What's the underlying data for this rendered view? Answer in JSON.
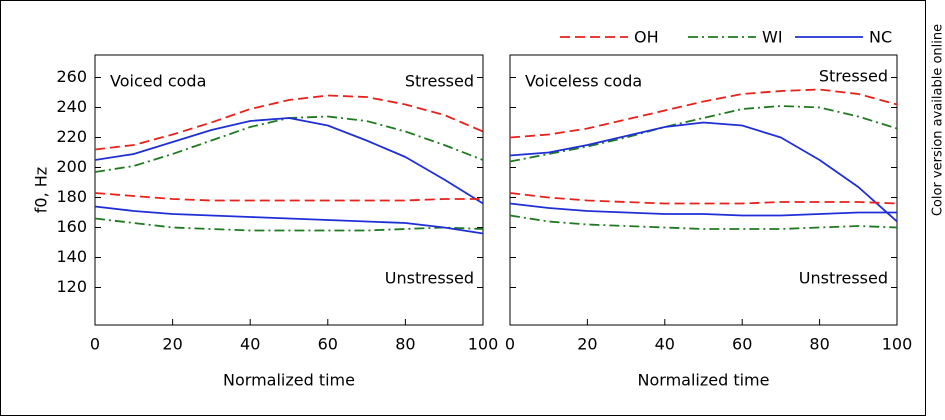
{
  "side_note": "Color version available online",
  "legend": [
    {
      "name": "OH",
      "color": "#e8211b",
      "style": "dashed"
    },
    {
      "name": "WI",
      "color": "#1f7a1f",
      "style": "dashdot"
    },
    {
      "name": "NC",
      "color": "#1f2fd6",
      "style": "solid"
    }
  ],
  "chart_data": [
    {
      "type": "line",
      "ylabel": "f0, Hz",
      "xlabel": "Normalized time",
      "annotations": [
        "Voiced coda",
        "Stressed",
        "Unstressed"
      ],
      "x": [
        0,
        10,
        20,
        30,
        40,
        50,
        60,
        70,
        80,
        90,
        100
      ],
      "xlim": [
        0,
        100
      ],
      "xticks": [
        0,
        20,
        40,
        60,
        80,
        100
      ],
      "ylim": [
        95,
        275
      ],
      "yticks": [
        120,
        140,
        160,
        180,
        200,
        220,
        240,
        260
      ],
      "series": [
        {
          "name": "OH",
          "color": "#e8211b",
          "style": "dashed",
          "values": [
            212,
            215,
            222,
            230,
            239,
            245,
            248,
            247,
            242,
            235,
            224
          ]
        },
        {
          "name": "WI",
          "color": "#1f7a1f",
          "style": "dashdot",
          "values": [
            197,
            201,
            209,
            218,
            227,
            233,
            234,
            231,
            224,
            215,
            205
          ]
        },
        {
          "name": "NC",
          "color": "#1f2fd6",
          "style": "solid",
          "values": [
            205,
            209,
            217,
            225,
            231,
            233,
            228,
            218,
            207,
            192,
            176
          ]
        },
        {
          "name": "OH",
          "color": "#e8211b",
          "style": "dashed",
          "values": [
            183,
            181,
            179,
            178,
            178,
            178,
            178,
            178,
            178,
            179,
            179
          ]
        },
        {
          "name": "WI",
          "color": "#1f7a1f",
          "style": "dashdot",
          "values": [
            166,
            163,
            160,
            159,
            158,
            158,
            158,
            158,
            159,
            160,
            159
          ]
        },
        {
          "name": "NC",
          "color": "#1f2fd6",
          "style": "solid",
          "values": [
            174,
            171,
            169,
            168,
            167,
            166,
            165,
            164,
            163,
            160,
            156
          ]
        }
      ]
    },
    {
      "type": "line",
      "xlabel": "Normalized time",
      "annotations": [
        "Voiceless coda",
        "Stressed",
        "Unstressed"
      ],
      "x": [
        0,
        10,
        20,
        30,
        40,
        50,
        60,
        70,
        80,
        90,
        100
      ],
      "xlim": [
        0,
        100
      ],
      "xticks": [
        0,
        20,
        40,
        60,
        80,
        100
      ],
      "ylim": [
        95,
        275
      ],
      "yticks": [
        120,
        140,
        160,
        180,
        200,
        220,
        240,
        260
      ],
      "series": [
        {
          "name": "OH",
          "color": "#e8211b",
          "style": "dashed",
          "values": [
            220,
            222,
            226,
            232,
            238,
            244,
            249,
            251,
            252,
            249,
            242
          ]
        },
        {
          "name": "WI",
          "color": "#1f7a1f",
          "style": "dashdot",
          "values": [
            204,
            209,
            214,
            220,
            227,
            233,
            239,
            241,
            240,
            234,
            226
          ]
        },
        {
          "name": "NC",
          "color": "#1f2fd6",
          "style": "solid",
          "values": [
            208,
            210,
            215,
            221,
            227,
            230,
            228,
            220,
            205,
            187,
            164
          ]
        },
        {
          "name": "OH",
          "color": "#e8211b",
          "style": "dashed",
          "values": [
            183,
            180,
            178,
            177,
            176,
            176,
            176,
            177,
            177,
            177,
            176
          ]
        },
        {
          "name": "WI",
          "color": "#1f7a1f",
          "style": "dashdot",
          "values": [
            168,
            164,
            162,
            161,
            160,
            159,
            159,
            159,
            160,
            161,
            160
          ]
        },
        {
          "name": "NC",
          "color": "#1f2fd6",
          "style": "solid",
          "values": [
            176,
            173,
            171,
            170,
            169,
            169,
            168,
            168,
            169,
            170,
            170
          ]
        }
      ]
    }
  ]
}
